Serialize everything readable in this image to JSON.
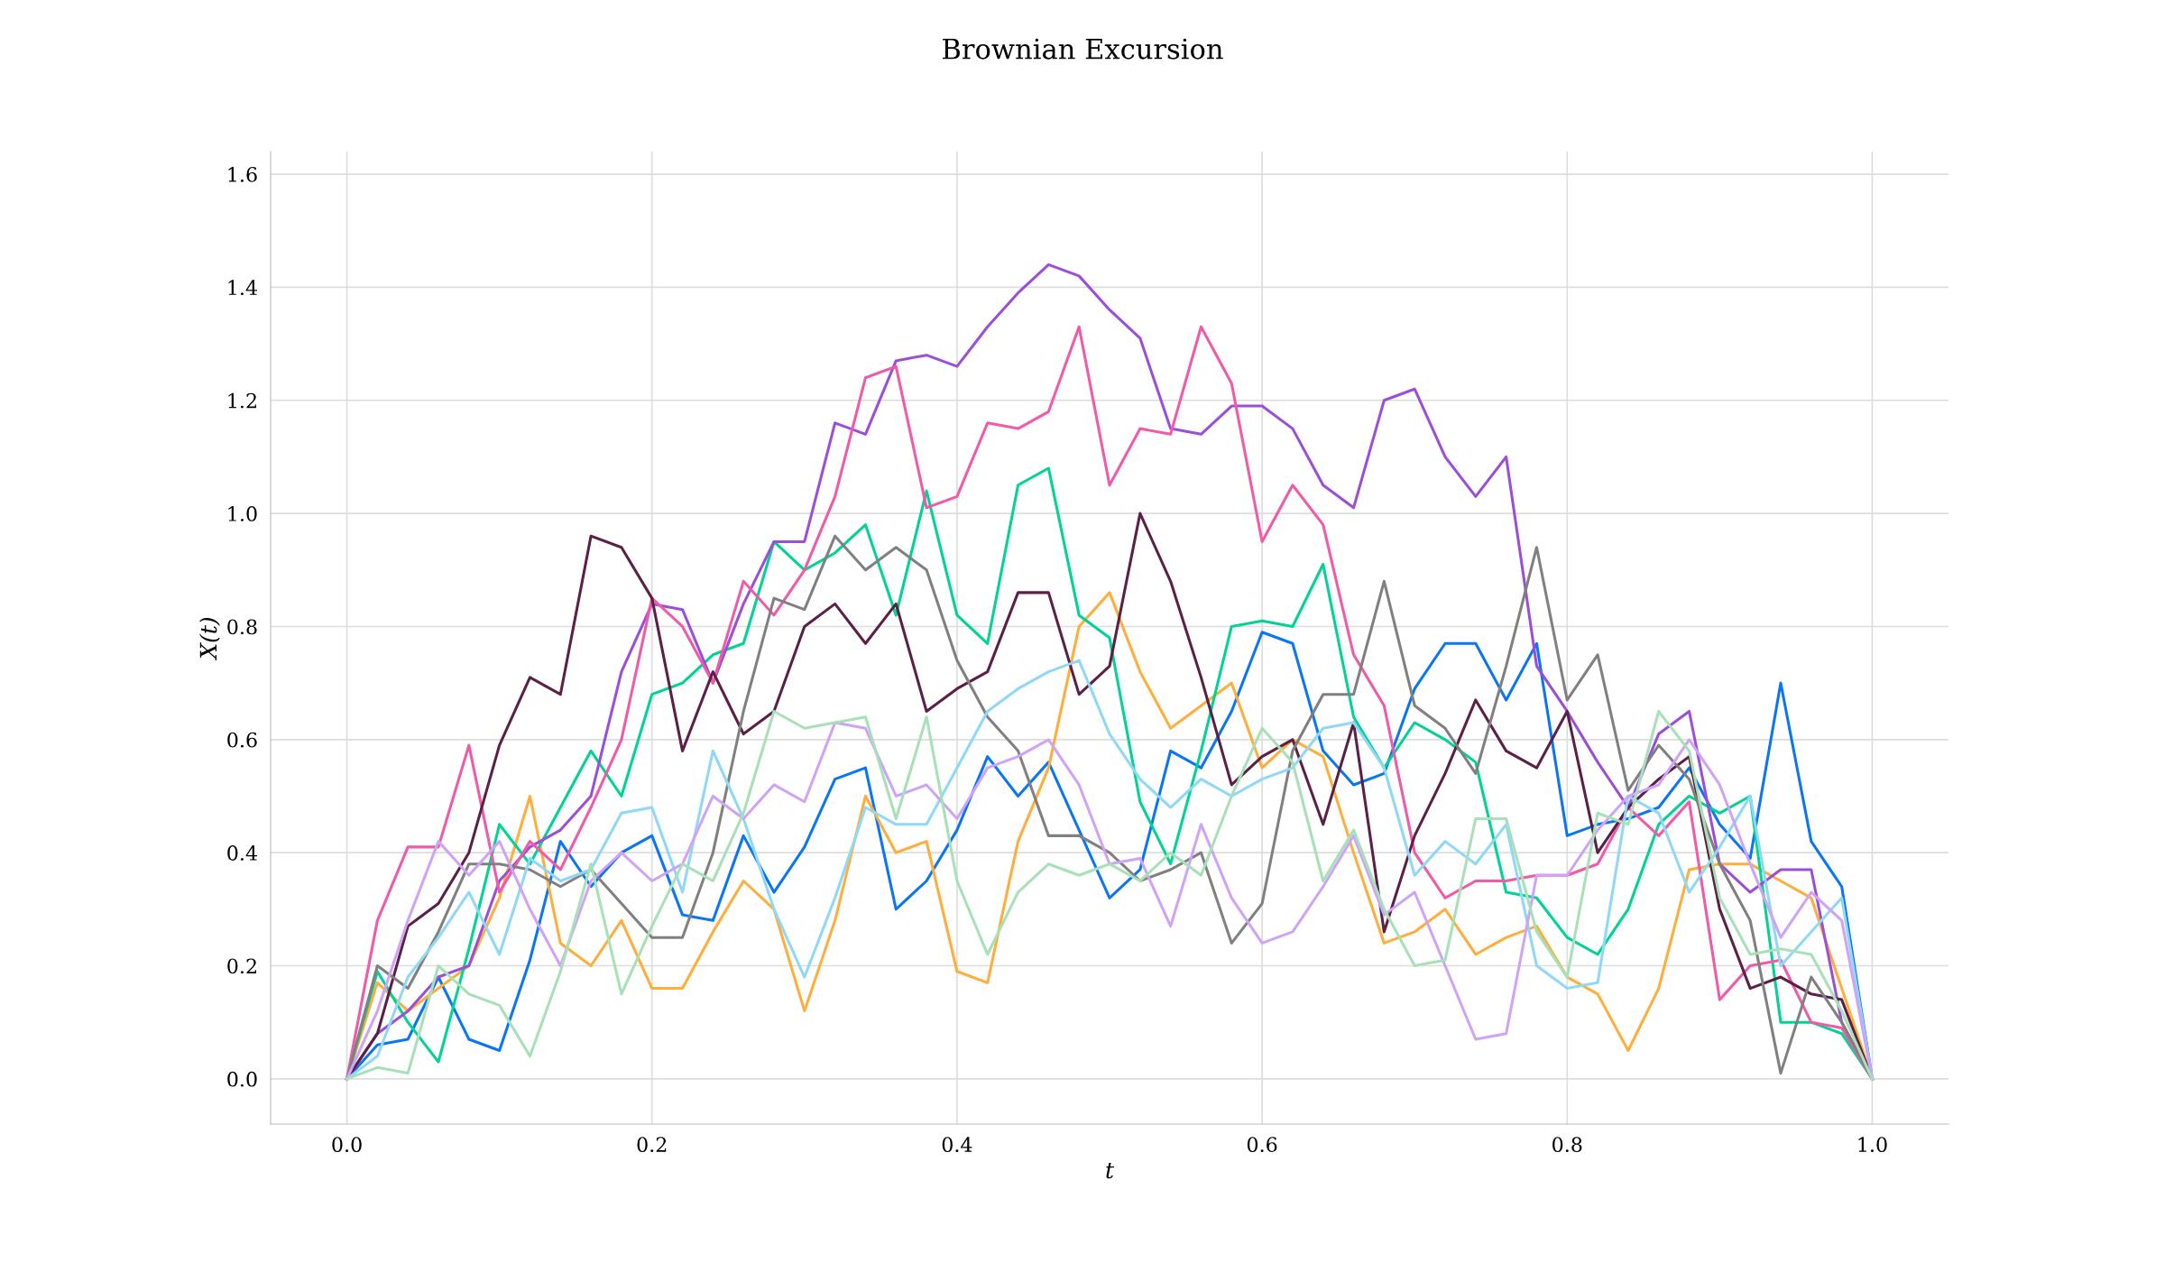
{
  "chart_data": {
    "type": "line",
    "title": "Brownian Excursion",
    "xlabel": "t",
    "ylabel": "X(t)",
    "x": [
      0,
      0.02,
      0.04,
      0.06,
      0.08,
      0.1,
      0.12,
      0.14,
      0.16,
      0.18,
      0.2,
      0.22,
      0.24,
      0.26,
      0.28,
      0.3,
      0.32,
      0.34,
      0.36,
      0.38,
      0.4,
      0.42,
      0.44,
      0.46,
      0.48,
      0.5,
      0.52,
      0.54,
      0.56,
      0.58,
      0.6,
      0.62,
      0.64,
      0.66,
      0.68,
      0.7,
      0.72,
      0.74,
      0.76,
      0.78,
      0.8,
      0.82,
      0.84,
      0.86,
      0.88,
      0.9,
      0.92,
      0.94,
      0.96,
      0.98,
      1.0
    ],
    "xlim": [
      -0.05,
      1.05
    ],
    "ylim": [
      -0.08,
      1.64
    ],
    "xticks": [
      {
        "value": 0,
        "label": "0.0"
      },
      0.2,
      0.4,
      0.6,
      0.8,
      {
        "value": 1,
        "label": "1.0"
      }
    ],
    "yticks": [
      {
        "value": 0,
        "label": "0.0"
      },
      0.2,
      0.4,
      0.6,
      0.8,
      {
        "value": 1,
        "label": "1.0"
      },
      1.2,
      1.4,
      1.6
    ],
    "grid": true,
    "marker": "none",
    "line_style": "solid",
    "series": [
      {
        "color": "#0a76f5",
        "values": [
          0,
          0.06,
          0.07,
          0.18,
          0.07,
          0.05,
          0.21,
          0.42,
          0.34,
          0.4,
          0.43,
          0.29,
          0.28,
          0.43,
          0.33,
          0.41,
          0.53,
          0.55,
          0.3,
          0.35,
          0.44,
          0.57,
          0.5,
          0.56,
          0.44,
          0.32,
          0.37,
          0.58,
          0.55,
          0.65,
          0.79,
          0.77,
          0.58,
          0.52,
          0.54,
          0.69,
          0.77,
          0.77,
          0.67,
          0.77,
          0.43,
          0.45,
          0.46,
          0.48,
          0.55,
          0.45,
          0.39,
          0.7,
          0.42,
          0.34,
          0
        ]
      },
      {
        "color": "#ffae3b",
        "values": [
          0,
          0.17,
          0.12,
          0.16,
          0.2,
          0.32,
          0.5,
          0.24,
          0.2,
          0.28,
          0.16,
          0.16,
          0.26,
          0.35,
          0.3,
          0.12,
          0.28,
          0.5,
          0.4,
          0.42,
          0.19,
          0.17,
          0.42,
          0.55,
          0.8,
          0.86,
          0.72,
          0.62,
          0.66,
          0.7,
          0.55,
          0.6,
          0.57,
          0.4,
          0.24,
          0.26,
          0.3,
          0.22,
          0.25,
          0.27,
          0.18,
          0.15,
          0.05,
          0.16,
          0.37,
          0.38,
          0.38,
          0.35,
          0.32,
          0.16,
          0
        ]
      },
      {
        "color": "#00d495",
        "values": [
          0,
          0.19,
          0.1,
          0.03,
          0.23,
          0.45,
          0.38,
          0.48,
          0.58,
          0.5,
          0.68,
          0.7,
          0.75,
          0.77,
          0.95,
          0.9,
          0.93,
          0.98,
          0.82,
          1.04,
          0.82,
          0.77,
          1.05,
          1.08,
          0.82,
          0.78,
          0.49,
          0.38,
          0.58,
          0.8,
          0.81,
          0.8,
          0.91,
          0.64,
          0.55,
          0.63,
          0.6,
          0.56,
          0.33,
          0.32,
          0.25,
          0.22,
          0.3,
          0.45,
          0.5,
          0.47,
          0.5,
          0.1,
          0.1,
          0.08,
          0
        ]
      },
      {
        "color": "#9b4fd9",
        "values": [
          0,
          0.08,
          0.12,
          0.18,
          0.2,
          0.35,
          0.41,
          0.44,
          0.5,
          0.72,
          0.84,
          0.83,
          0.7,
          0.84,
          0.95,
          0.95,
          1.16,
          1.14,
          1.27,
          1.28,
          1.26,
          1.33,
          1.39,
          1.44,
          1.42,
          1.36,
          1.31,
          1.15,
          1.14,
          1.19,
          1.19,
          1.15,
          1.05,
          1.01,
          1.2,
          1.22,
          1.1,
          1.03,
          1.1,
          0.73,
          0.65,
          0.56,
          0.48,
          0.61,
          0.65,
          0.38,
          0.33,
          0.37,
          0.37,
          0.1,
          0
        ]
      },
      {
        "color": "#f05aa8",
        "values": [
          0,
          0.28,
          0.41,
          0.41,
          0.59,
          0.33,
          0.42,
          0.37,
          0.48,
          0.6,
          0.85,
          0.8,
          0.7,
          0.88,
          0.82,
          0.9,
          1.03,
          1.24,
          1.26,
          1.01,
          1.03,
          1.16,
          1.15,
          1.18,
          1.33,
          1.05,
          1.15,
          1.14,
          1.33,
          1.23,
          0.95,
          1.05,
          0.98,
          0.75,
          0.66,
          0.4,
          0.32,
          0.35,
          0.35,
          0.36,
          0.36,
          0.38,
          0.48,
          0.43,
          0.49,
          0.14,
          0.2,
          0.21,
          0.1,
          0.09,
          0
        ]
      },
      {
        "color": "#5c1f45",
        "values": [
          0,
          0.08,
          0.27,
          0.31,
          0.4,
          0.59,
          0.71,
          0.68,
          0.96,
          0.94,
          0.85,
          0.58,
          0.72,
          0.61,
          0.65,
          0.8,
          0.84,
          0.77,
          0.84,
          0.65,
          0.69,
          0.72,
          0.86,
          0.86,
          0.68,
          0.73,
          1.0,
          0.88,
          0.71,
          0.52,
          0.57,
          0.6,
          0.45,
          0.63,
          0.26,
          0.43,
          0.54,
          0.67,
          0.58,
          0.55,
          0.65,
          0.4,
          0.48,
          0.53,
          0.57,
          0.3,
          0.16,
          0.18,
          0.15,
          0.14,
          0
        ]
      },
      {
        "color": "#808080",
        "values": [
          0,
          0.2,
          0.16,
          0.26,
          0.38,
          0.38,
          0.37,
          0.34,
          0.37,
          0.31,
          0.25,
          0.25,
          0.4,
          0.65,
          0.85,
          0.83,
          0.96,
          0.9,
          0.94,
          0.9,
          0.74,
          0.64,
          0.58,
          0.43,
          0.43,
          0.4,
          0.35,
          0.37,
          0.4,
          0.24,
          0.31,
          0.58,
          0.68,
          0.68,
          0.88,
          0.66,
          0.62,
          0.54,
          0.73,
          0.94,
          0.67,
          0.75,
          0.51,
          0.59,
          0.53,
          0.38,
          0.28,
          0.01,
          0.18,
          0.1,
          0
        ]
      },
      {
        "color": "#8fd8f7",
        "values": [
          0,
          0.04,
          0.18,
          0.25,
          0.33,
          0.22,
          0.39,
          0.35,
          0.37,
          0.47,
          0.48,
          0.33,
          0.58,
          0.46,
          0.3,
          0.18,
          0.32,
          0.48,
          0.45,
          0.45,
          0.55,
          0.65,
          0.69,
          0.72,
          0.74,
          0.61,
          0.53,
          0.48,
          0.53,
          0.5,
          0.53,
          0.55,
          0.62,
          0.63,
          0.55,
          0.36,
          0.42,
          0.38,
          0.45,
          0.2,
          0.16,
          0.17,
          0.5,
          0.47,
          0.33,
          0.41,
          0.5,
          0.2,
          0.26,
          0.32,
          0
        ]
      },
      {
        "color": "#cfa3f7",
        "values": [
          0,
          0.12,
          0.28,
          0.42,
          0.36,
          0.42,
          0.3,
          0.2,
          0.35,
          0.4,
          0.35,
          0.38,
          0.5,
          0.46,
          0.52,
          0.49,
          0.63,
          0.62,
          0.5,
          0.52,
          0.46,
          0.55,
          0.57,
          0.6,
          0.52,
          0.38,
          0.39,
          0.27,
          0.45,
          0.32,
          0.24,
          0.26,
          0.34,
          0.43,
          0.29,
          0.33,
          0.2,
          0.07,
          0.08,
          0.36,
          0.36,
          0.44,
          0.5,
          0.52,
          0.6,
          0.52,
          0.38,
          0.25,
          0.33,
          0.28,
          0
        ]
      },
      {
        "color": "#a8e0b8",
        "values": [
          0,
          0.02,
          0.01,
          0.2,
          0.15,
          0.13,
          0.04,
          0.19,
          0.38,
          0.15,
          0.27,
          0.38,
          0.35,
          0.47,
          0.65,
          0.62,
          0.63,
          0.64,
          0.46,
          0.64,
          0.35,
          0.22,
          0.33,
          0.38,
          0.36,
          0.38,
          0.35,
          0.4,
          0.36,
          0.5,
          0.62,
          0.56,
          0.35,
          0.44,
          0.3,
          0.2,
          0.21,
          0.46,
          0.46,
          0.26,
          0.18,
          0.47,
          0.45,
          0.65,
          0.58,
          0.32,
          0.22,
          0.23,
          0.22,
          0.12,
          0
        ]
      }
    ]
  }
}
